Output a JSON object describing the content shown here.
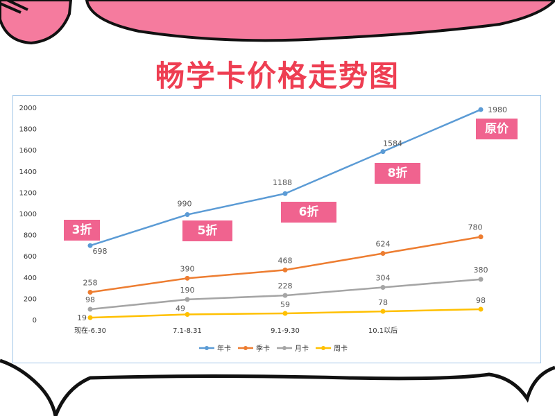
{
  "page": {
    "title": "畅学卡价格走势图"
  },
  "chart_data": {
    "type": "line",
    "categories": [
      "现在-6.30",
      "7.1-8.31",
      "9.1-9.30",
      "10.1以后",
      ""
    ],
    "ylim": [
      0,
      2000
    ],
    "yticks": [
      0,
      200,
      400,
      600,
      800,
      1000,
      1200,
      1400,
      1600,
      1800,
      2000
    ],
    "grid": false,
    "legend": "bottom",
    "series": [
      {
        "name": "年卡",
        "color": "#5b9bd5",
        "values": [
          698,
          990,
          1188,
          1584,
          1980
        ]
      },
      {
        "name": "季卡",
        "color": "#ed7d31",
        "values": [
          258,
          390,
          468,
          624,
          780
        ]
      },
      {
        "name": "月卡",
        "color": "#a5a5a5",
        "values": [
          98,
          190,
          228,
          304,
          380
        ]
      },
      {
        "name": "周卡",
        "color": "#ffc000",
        "values": [
          19,
          49,
          59,
          78,
          98
        ]
      }
    ],
    "annotations": [
      "3折",
      "5折",
      "6折",
      "8折",
      "原价"
    ]
  },
  "colors": {
    "pink": "#f0638f",
    "title": "#ee3e52",
    "frame": "#9fc5e8"
  }
}
